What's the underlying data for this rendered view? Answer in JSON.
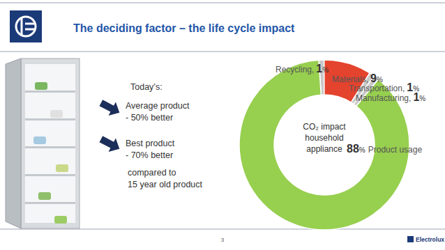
{
  "chart_data": {
    "type": "donut",
    "title": "The deciding factor – the life cycle impact",
    "center_label": [
      "CO₂ impact",
      "household",
      "appliance"
    ],
    "categories": [
      "Recycling,",
      "Materials,",
      "Transportation,",
      "Manufacturing,",
      "Product usage"
    ],
    "values": [
      1,
      9,
      1,
      1,
      88
    ],
    "value_labels": [
      "1%",
      "9%",
      "1%",
      "1%",
      "88%"
    ],
    "data_labels": true,
    "colors": [
      "#c9c9c9",
      "#e4432d",
      "#c9c9c9",
      "#c9c9c9",
      "#97cf4f"
    ],
    "annotations": [
      "Today’s:",
      "Average product",
      "- 50% better",
      "Best product",
      "- 70% better",
      "compared to",
      "15 year old product"
    ],
    "page_number": 3,
    "brand": "Electrolux"
  }
}
